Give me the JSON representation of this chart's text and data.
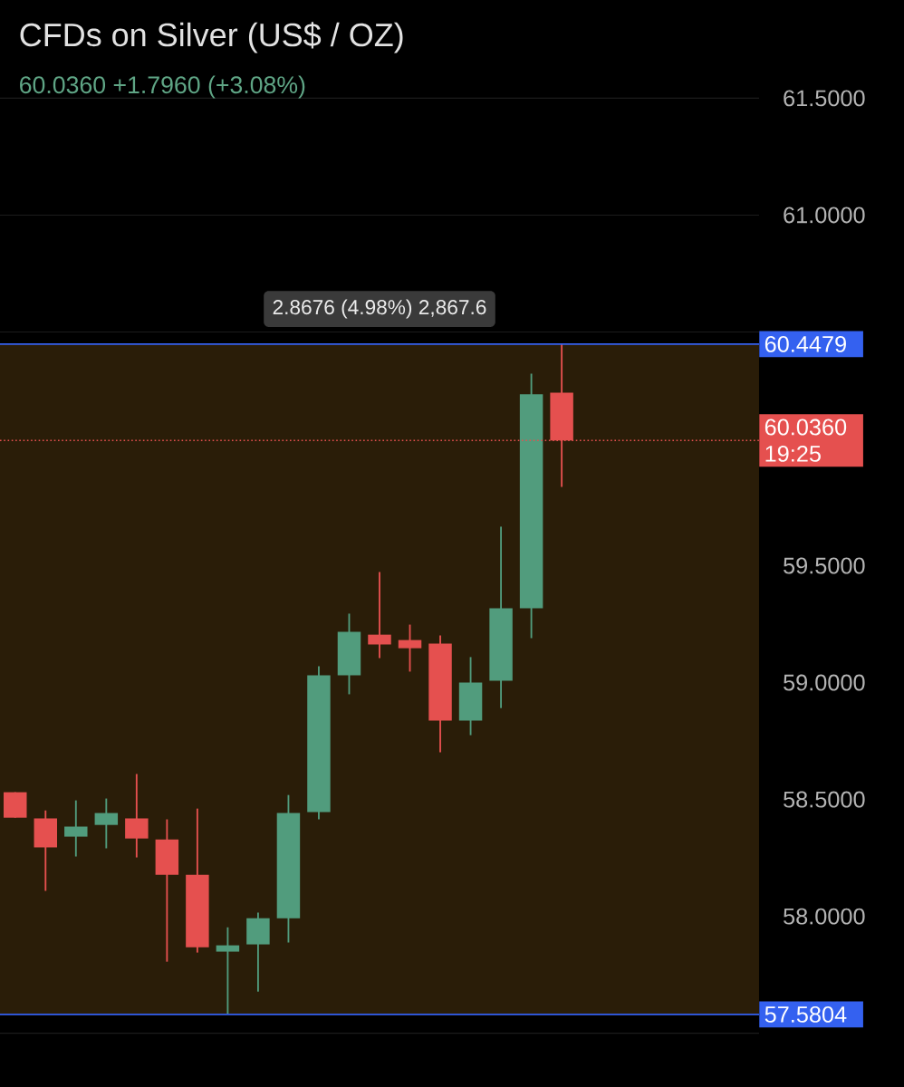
{
  "chart_data": {
    "type": "candlestick",
    "title": "CFDs on Silver (US$ / OZ)",
    "subtitle": "60.0360  +1.7960 (+3.08%)",
    "categories": [
      null,
      null,
      null,
      null,
      null,
      null,
      null,
      null,
      null,
      null,
      null,
      null,
      null,
      null,
      null,
      null,
      null,
      null,
      null,
      null,
      null,
      null,
      null,
      null,
      null
    ],
    "ohlc": [
      [
        58.531,
        58.531,
        58.422,
        58.422
      ],
      [
        58.419,
        58.453,
        58.109,
        58.295
      ],
      [
        58.341,
        58.496,
        58.256,
        58.384
      ],
      [
        58.391,
        58.504,
        58.291,
        58.442
      ],
      [
        58.419,
        58.609,
        58.252,
        58.333
      ],
      [
        58.329,
        58.415,
        57.806,
        58.178
      ],
      [
        58.178,
        58.461,
        57.845,
        57.868
      ],
      [
        57.849,
        57.953,
        57.5804,
        57.876
      ],
      [
        57.88,
        58.016,
        57.678,
        57.992
      ],
      [
        57.992,
        58.519,
        57.888,
        58.442
      ],
      [
        58.446,
        59.07,
        58.415,
        59.031
      ],
      [
        59.031,
        59.295,
        58.95,
        59.217
      ],
      [
        59.205,
        59.473,
        59.105,
        59.163
      ],
      [
        59.182,
        59.248,
        59.047,
        59.147
      ],
      [
        59.167,
        59.202,
        58.702,
        58.837
      ],
      [
        58.837,
        59.109,
        58.775,
        59.0
      ],
      [
        59.008,
        59.667,
        58.891,
        59.318
      ],
      [
        59.318,
        60.322,
        59.19,
        60.233
      ],
      [
        60.24,
        60.4479,
        59.837,
        60.036
      ],
      null,
      null,
      null,
      null,
      null,
      null
    ],
    "colors": [
      "#e5504f",
      "#e5504f",
      "#519c7d",
      "#519c7d",
      "#e5504f",
      "#e5504f",
      "#e5504f",
      "#519c7d",
      "#519c7d",
      "#519c7d",
      "#519c7d",
      "#519c7d",
      "#e5504f",
      "#e5504f",
      "#e5504f",
      "#519c7d",
      "#519c7d",
      "#519c7d",
      "#e5504f",
      null,
      null,
      null,
      null,
      null,
      null
    ],
    "ylim": [
      57.27,
      61.92
    ],
    "yticks": [
      {
        "value": 57.5,
        "label": null
      },
      {
        "value": 58,
        "label": "58.0000"
      },
      {
        "value": 58.5,
        "label": "58.5000"
      },
      {
        "value": 59,
        "label": "59.0000"
      },
      {
        "value": 59.5,
        "label": "59.5000"
      },
      {
        "value": 60,
        "label": null
      },
      {
        "value": 60.5,
        "label": null
      },
      {
        "value": 61,
        "label": "61.0000"
      },
      {
        "value": 61.5,
        "label": "61.5000"
      }
    ],
    "grid": "y",
    "tick_labels": "y",
    "bands": [
      {
        "axis": "y",
        "from": 57.5804,
        "to": 60.4479,
        "color": "#2a1d08"
      }
    ],
    "ref_lines": [
      {
        "axis": "y",
        "value": 60.4479,
        "label": "60.4479",
        "color": "#3461f0"
      },
      {
        "axis": "y",
        "value": 57.5804,
        "label": "57.5804",
        "color": "#3461f0"
      },
      {
        "axis": "y",
        "value": 60.036,
        "label": "60.0360 19:25",
        "color": "#e5504f",
        "line_style": "dotted"
      }
    ],
    "annotations": [
      {
        "text": "2.8676 (4.98%) 2,867.6",
        "y": 60.4479
      }
    ]
  }
}
